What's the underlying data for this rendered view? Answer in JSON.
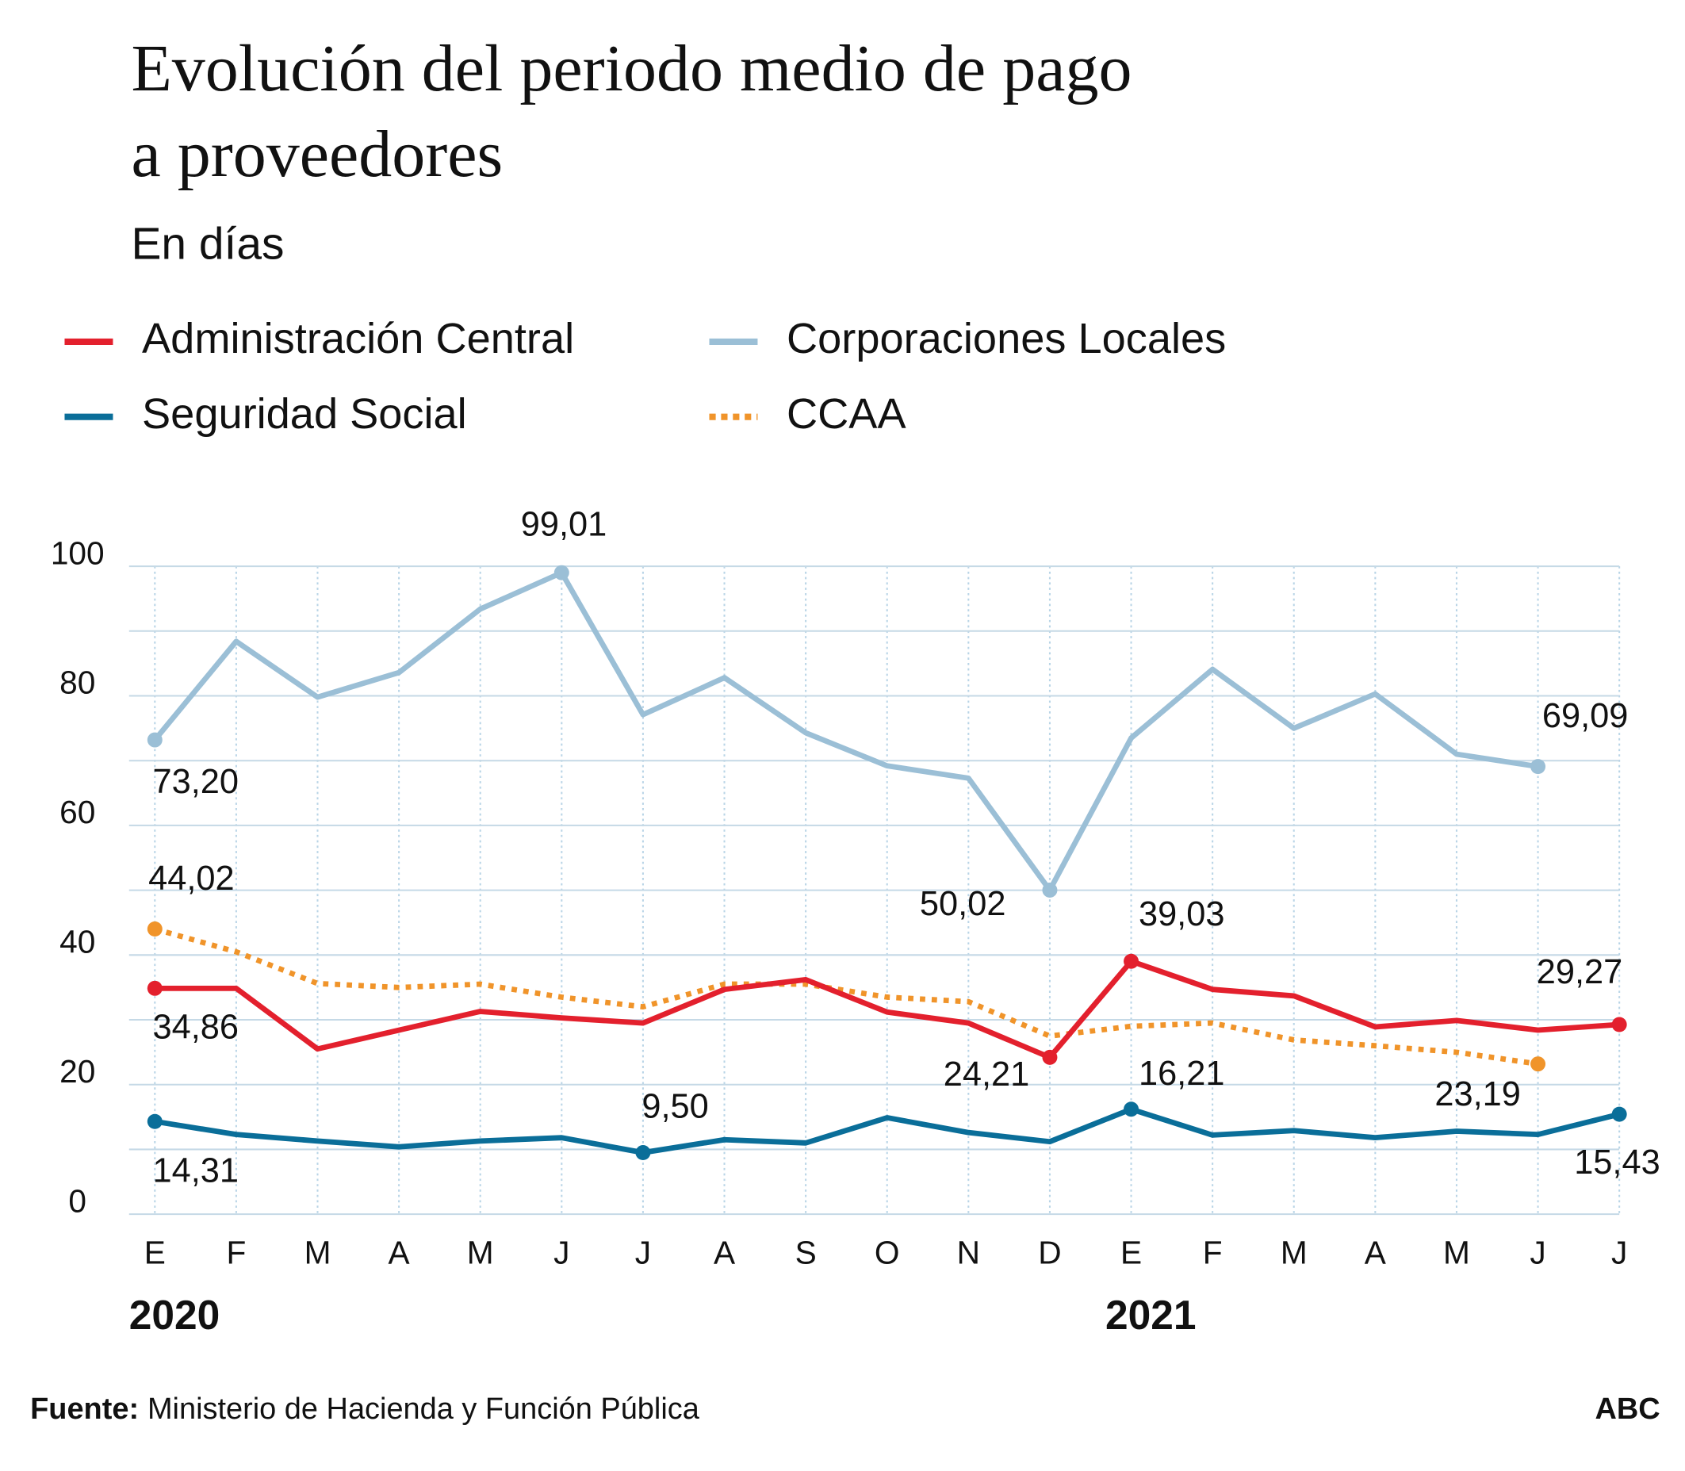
{
  "chart_data": {
    "type": "line",
    "title": "Evolución del periodo medio de pago a proveedores",
    "subtitle": "En días",
    "categories": [
      "E",
      "F",
      "M",
      "A",
      "M",
      "J",
      "J",
      "A",
      "S",
      "O",
      "N",
      "D",
      "E",
      "F",
      "M",
      "A",
      "M",
      "J",
      "J"
    ],
    "year_labels": [
      {
        "index": 0,
        "label": "2020"
      },
      {
        "index": 12,
        "label": "2021"
      }
    ],
    "ylim": [
      0,
      100
    ],
    "yticks": [
      0,
      20,
      40,
      60,
      80,
      100
    ],
    "yticks_minor": [
      10,
      30,
      50,
      70,
      90
    ],
    "grid": true,
    "series": [
      {
        "name": "Administración Central",
        "color": "#e3202d",
        "style": "solid",
        "values": [
          34.86,
          34.86,
          25.5,
          28.4,
          31.3,
          30.3,
          29.5,
          34.7,
          36.2,
          31.2,
          29.5,
          24.21,
          39.03,
          34.7,
          33.7,
          28.9,
          29.9,
          28.4,
          29.27
        ],
        "value_labels": [
          "34,86",
          null,
          null,
          null,
          null,
          null,
          null,
          null,
          null,
          null,
          null,
          "24,21",
          "39,03",
          null,
          null,
          null,
          null,
          null,
          "29,27"
        ]
      },
      {
        "name": "Corporaciones Locales",
        "color": "#9bbfd6",
        "style": "solid",
        "values": [
          73.2,
          88.4,
          79.8,
          83.6,
          93.4,
          99.01,
          77.1,
          82.8,
          74.3,
          69.2,
          67.3,
          50.02,
          73.5,
          84.1,
          75,
          80.3,
          71,
          69.09,
          null
        ],
        "value_labels": [
          "73,20",
          null,
          null,
          null,
          null,
          "99,01",
          null,
          null,
          null,
          null,
          null,
          "50,02",
          null,
          null,
          null,
          null,
          null,
          "69,09",
          null
        ]
      },
      {
        "name": "Seguridad Social",
        "color": "#0a6e99",
        "style": "solid",
        "values": [
          14.31,
          12.3,
          11.3,
          10.4,
          11.3,
          11.8,
          9.5,
          11.5,
          11,
          14.9,
          12.6,
          11.2,
          16.21,
          12.2,
          12.9,
          11.8,
          12.8,
          12.3,
          15.43
        ],
        "value_labels": [
          "14,31",
          null,
          null,
          null,
          null,
          null,
          "9,50",
          null,
          null,
          null,
          null,
          null,
          "16,21",
          null,
          null,
          null,
          null,
          null,
          "15,43"
        ]
      },
      {
        "name": "CCAA",
        "color": "#f0942a",
        "style": "dotted",
        "values": [
          44.02,
          40.5,
          35.6,
          35,
          35.5,
          33.5,
          32,
          35.5,
          35.5,
          33.5,
          32.8,
          27.5,
          29,
          29.5,
          26.9,
          26,
          25,
          23.19,
          null
        ],
        "value_labels": [
          "44,02",
          null,
          null,
          null,
          null,
          null,
          null,
          null,
          null,
          null,
          null,
          null,
          null,
          null,
          null,
          null,
          null,
          "23,19",
          null
        ]
      }
    ],
    "source_label": "Fuente:",
    "source": "Ministerio de Hacienda y Función Pública",
    "brand": "ABC"
  }
}
